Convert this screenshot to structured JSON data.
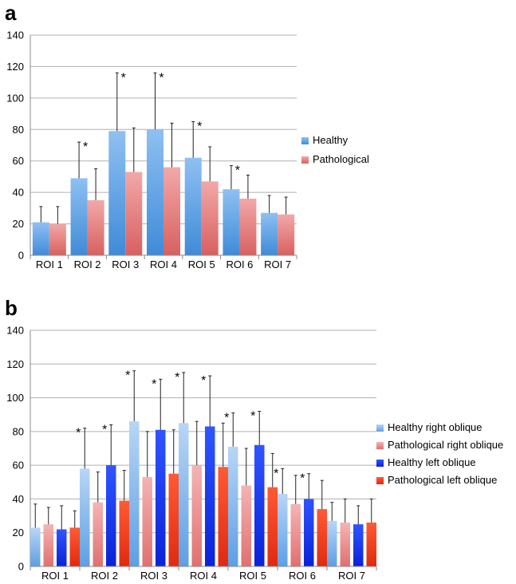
{
  "chart_data": [
    {
      "panel": "a",
      "type": "bar",
      "categories": [
        "ROI 1",
        "ROI 2",
        "ROI 3",
        "ROI 4",
        "ROI 5",
        "ROI 6",
        "ROI 7"
      ],
      "ylim": [
        0,
        140
      ],
      "yticks": [
        0,
        20,
        40,
        60,
        80,
        100,
        120,
        140
      ],
      "grid": true,
      "legend_position": "right",
      "series": [
        {
          "name": "Healthy",
          "color": "#6fa8e8",
          "values": [
            21,
            49,
            79,
            80,
            62,
            42,
            27
          ],
          "errors": [
            10,
            23,
            37,
            36,
            23,
            15,
            11
          ]
        },
        {
          "name": "Pathological",
          "color": "#e88080",
          "values": [
            20,
            35,
            53,
            56,
            47,
            36,
            26
          ],
          "errors": [
            11,
            20,
            28,
            28,
            22,
            15,
            11
          ]
        }
      ],
      "significance": [
        {
          "category": "ROI 2",
          "label": "*"
        },
        {
          "category": "ROI 3",
          "label": "*"
        },
        {
          "category": "ROI 4",
          "label": "*"
        },
        {
          "category": "ROI 5",
          "label": "*"
        },
        {
          "category": "ROI 6",
          "label": "*"
        }
      ]
    },
    {
      "panel": "b",
      "type": "bar",
      "categories": [
        "ROI 1",
        "ROI 2",
        "ROI 3",
        "ROI 4",
        "ROI 5",
        "ROI 6",
        "ROI 7"
      ],
      "ylim": [
        0,
        140
      ],
      "yticks": [
        0,
        20,
        40,
        60,
        80,
        100,
        120,
        140
      ],
      "grid": true,
      "legend_position": "right",
      "series": [
        {
          "name": "Healthy right oblique",
          "color": "#8fbcee",
          "values": [
            23,
            58,
            86,
            85,
            71,
            43,
            27
          ],
          "errors": [
            14,
            24,
            30,
            30,
            20,
            15,
            11
          ]
        },
        {
          "name": "Pathological right oblique",
          "color": "#ee9090",
          "values": [
            25,
            38,
            53,
            60,
            48,
            37,
            26
          ],
          "errors": [
            10,
            18,
            27,
            26,
            22,
            17,
            14
          ]
        },
        {
          "name": "Healthy left oblique",
          "color": "#1a3cf0",
          "values": [
            22,
            60,
            81,
            83,
            72,
            40,
            25
          ],
          "errors": [
            14,
            24,
            30,
            30,
            20,
            15,
            11
          ]
        },
        {
          "name": "Pathological left oblique",
          "color": "#f03c1c",
          "values": [
            23,
            39,
            55,
            59,
            47,
            34,
            26
          ],
          "errors": [
            10,
            18,
            26,
            26,
            20,
            17,
            14
          ]
        }
      ],
      "significance": [
        {
          "category": "ROI 2",
          "series_index": 0,
          "label": "*"
        },
        {
          "category": "ROI 2",
          "series_index": 2,
          "label": "*"
        },
        {
          "category": "ROI 3",
          "series_index": 0,
          "label": "*"
        },
        {
          "category": "ROI 3",
          "series_index": 2,
          "label": "*"
        },
        {
          "category": "ROI 4",
          "series_index": 0,
          "label": "*"
        },
        {
          "category": "ROI 4",
          "series_index": 2,
          "label": "*"
        },
        {
          "category": "ROI 5",
          "series_index": 0,
          "label": "*"
        },
        {
          "category": "ROI 5",
          "series_index": 2,
          "label": "*"
        },
        {
          "category": "ROI 6",
          "series_index": 0,
          "label": "*"
        },
        {
          "category": "ROI 6",
          "series_index": 2,
          "label": "*"
        }
      ]
    }
  ]
}
